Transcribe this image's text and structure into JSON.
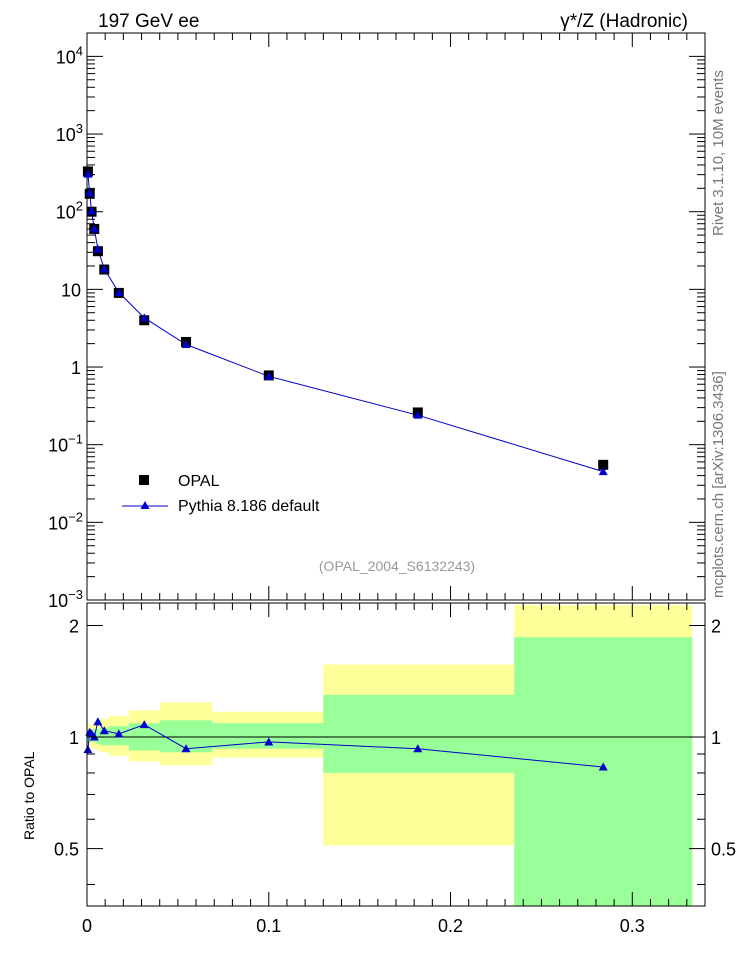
{
  "header": {
    "left_title": "197 GeV ee",
    "right_title": "γ*/Z (Hadronic)"
  },
  "side_labels": {
    "rivet": "Rivet 3.1.10, 10M events",
    "mcplots": "mcplots.cern.ch [arXiv:1306.3436]"
  },
  "chart_data": [
    {
      "type": "scatter",
      "name": "main",
      "yscale": "log",
      "xlim": [
        0,
        0.34
      ],
      "ylim": [
        0.001,
        20000
      ],
      "y_ticks": [
        {
          "base": "10",
          "exp": "4",
          "value": 10000
        },
        {
          "base": "10",
          "exp": "3",
          "value": 1000
        },
        {
          "base": "10",
          "exp": "2",
          "value": 100
        },
        {
          "base": "10",
          "exp": "",
          "value": 10
        },
        {
          "base": "1",
          "exp": "",
          "value": 1
        },
        {
          "base": "10",
          "exp": "−1",
          "value": 0.1
        },
        {
          "base": "10",
          "exp": "−2",
          "value": 0.01
        },
        {
          "base": "10",
          "exp": "−3",
          "value": 0.001
        }
      ],
      "annotation": "(OPAL_2004_S6132243)",
      "legend_position": "lower-left",
      "series": [
        {
          "name": "OPAL",
          "marker": "square",
          "color": "#000000",
          "x": [
            0.0005,
            0.0015,
            0.0025,
            0.004,
            0.006,
            0.0095,
            0.0175,
            0.0315,
            0.0545,
            0.1,
            0.182,
            0.284
          ],
          "y": [
            330,
            170,
            100,
            60,
            31,
            18,
            9.0,
            4.0,
            2.1,
            0.78,
            0.26,
            0.055
          ]
        },
        {
          "name": "Pythia 8.186 default",
          "marker": "triangle",
          "color": "#0000cc",
          "x": [
            0.0005,
            0.0015,
            0.0025,
            0.004,
            0.006,
            0.0095,
            0.0175,
            0.0315,
            0.0545,
            0.1,
            0.182,
            0.284
          ],
          "y": [
            305,
            175,
            102,
            60,
            33,
            18.3,
            9.1,
            4.3,
            1.95,
            0.76,
            0.24,
            0.045
          ]
        }
      ]
    },
    {
      "type": "line",
      "name": "ratio",
      "ylabel": "Ratio to OPAL",
      "xlim": [
        0,
        0.34
      ],
      "ylim": [
        0.35,
        2.3
      ],
      "x_ticks": [
        "0",
        "0.1",
        "0.2",
        "0.3"
      ],
      "x_tick_values": [
        0,
        0.1,
        0.2,
        0.3
      ],
      "y_ticks": [
        "0.5",
        "1",
        "2"
      ],
      "y_tick_values": [
        0.5,
        1,
        2
      ],
      "bands": [
        {
          "x0": 0.0,
          "x1": 0.001,
          "yellow": [
            0.92,
            1.09
          ],
          "green": [
            0.96,
            1.05
          ]
        },
        {
          "x0": 0.001,
          "x1": 0.002,
          "yellow": [
            0.93,
            1.08
          ],
          "green": [
            0.97,
            1.04
          ]
        },
        {
          "x0": 0.002,
          "x1": 0.003,
          "yellow": [
            0.94,
            1.07
          ],
          "green": [
            0.97,
            1.04
          ]
        },
        {
          "x0": 0.003,
          "x1": 0.005,
          "yellow": [
            0.93,
            1.09
          ],
          "green": [
            0.97,
            1.05
          ]
        },
        {
          "x0": 0.005,
          "x1": 0.007,
          "yellow": [
            0.92,
            1.1
          ],
          "green": [
            0.96,
            1.05
          ]
        },
        {
          "x0": 0.007,
          "x1": 0.012,
          "yellow": [
            0.91,
            1.12
          ],
          "green": [
            0.95,
            1.06
          ]
        },
        {
          "x0": 0.012,
          "x1": 0.023,
          "yellow": [
            0.89,
            1.14
          ],
          "green": [
            0.95,
            1.07
          ]
        },
        {
          "x0": 0.023,
          "x1": 0.04,
          "yellow": [
            0.86,
            1.18
          ],
          "green": [
            0.92,
            1.09
          ]
        },
        {
          "x0": 0.04,
          "x1": 0.069,
          "yellow": [
            0.84,
            1.24
          ],
          "green": [
            0.91,
            1.11
          ]
        },
        {
          "x0": 0.069,
          "x1": 0.13,
          "yellow": [
            0.88,
            1.17
          ],
          "green": [
            0.93,
            1.09
          ]
        },
        {
          "x0": 0.13,
          "x1": 0.235,
          "yellow": [
            0.51,
            1.57
          ],
          "green": [
            0.8,
            1.3
          ]
        },
        {
          "x0": 0.235,
          "x1": 0.333,
          "yellow": [
            0.35,
            2.27
          ],
          "green": [
            0.35,
            1.86
          ]
        }
      ],
      "series": [
        {
          "name": "Pythia 8.186 default",
          "color": "#0000cc",
          "x": [
            0.0005,
            0.0015,
            0.0025,
            0.004,
            0.006,
            0.0095,
            0.0175,
            0.0315,
            0.0545,
            0.1,
            0.182,
            0.284
          ],
          "y": [
            0.925,
            1.03,
            1.02,
            1.0,
            1.1,
            1.04,
            1.02,
            1.08,
            0.93,
            0.97,
            0.93,
            0.83
          ]
        }
      ]
    }
  ]
}
